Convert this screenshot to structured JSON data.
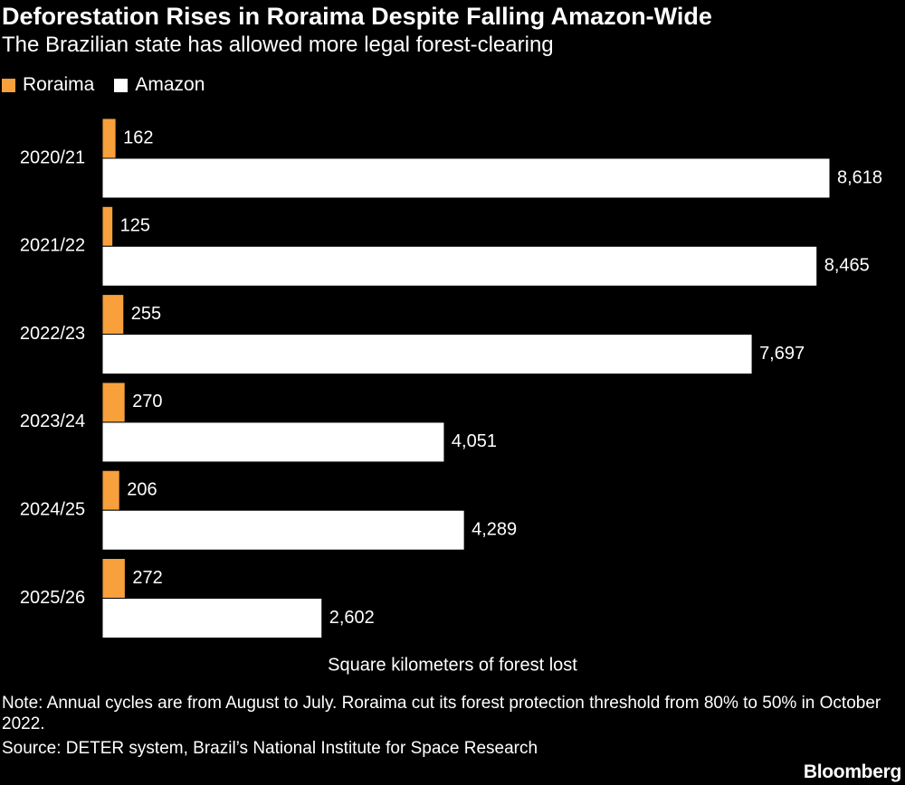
{
  "title": "Deforestation Rises in Roraima Despite Falling Amazon-Wide",
  "subtitle": "The Brazilian state has allowed more legal forest-clearing",
  "note": "Note: Annual cycles are from August to July. Roraima cut its forest protection threshold from 80% to 50% in October 2022.",
  "source": "Source: DETER system, Brazil’s National Institute for Space Research",
  "logo": "Bloomberg",
  "colors": {
    "roraima": "#f7a03c",
    "amazon": "#ffffff",
    "background": "#000000"
  },
  "chart_data": {
    "type": "bar",
    "orientation": "horizontal",
    "categories": [
      "2020/21",
      "2021/22",
      "2022/23",
      "2023/24",
      "2024/25",
      "2025/26"
    ],
    "series": [
      {
        "name": "Roraima",
        "values": [
          162,
          125,
          255,
          270,
          206,
          272
        ],
        "labels": [
          "162",
          "125",
          "255",
          "270",
          "206",
          "272"
        ]
      },
      {
        "name": "Amazon",
        "values": [
          8618,
          8465,
          7697,
          4051,
          4289,
          2602
        ],
        "labels": [
          "8,618",
          "8,465",
          "7,697",
          "4,051",
          "4,289",
          "2,602"
        ]
      }
    ],
    "xlabel": "Square kilometers of forest lost",
    "ylabel": "",
    "xlim": [
      0,
      8618
    ],
    "grid": false,
    "legend": "top-left"
  }
}
